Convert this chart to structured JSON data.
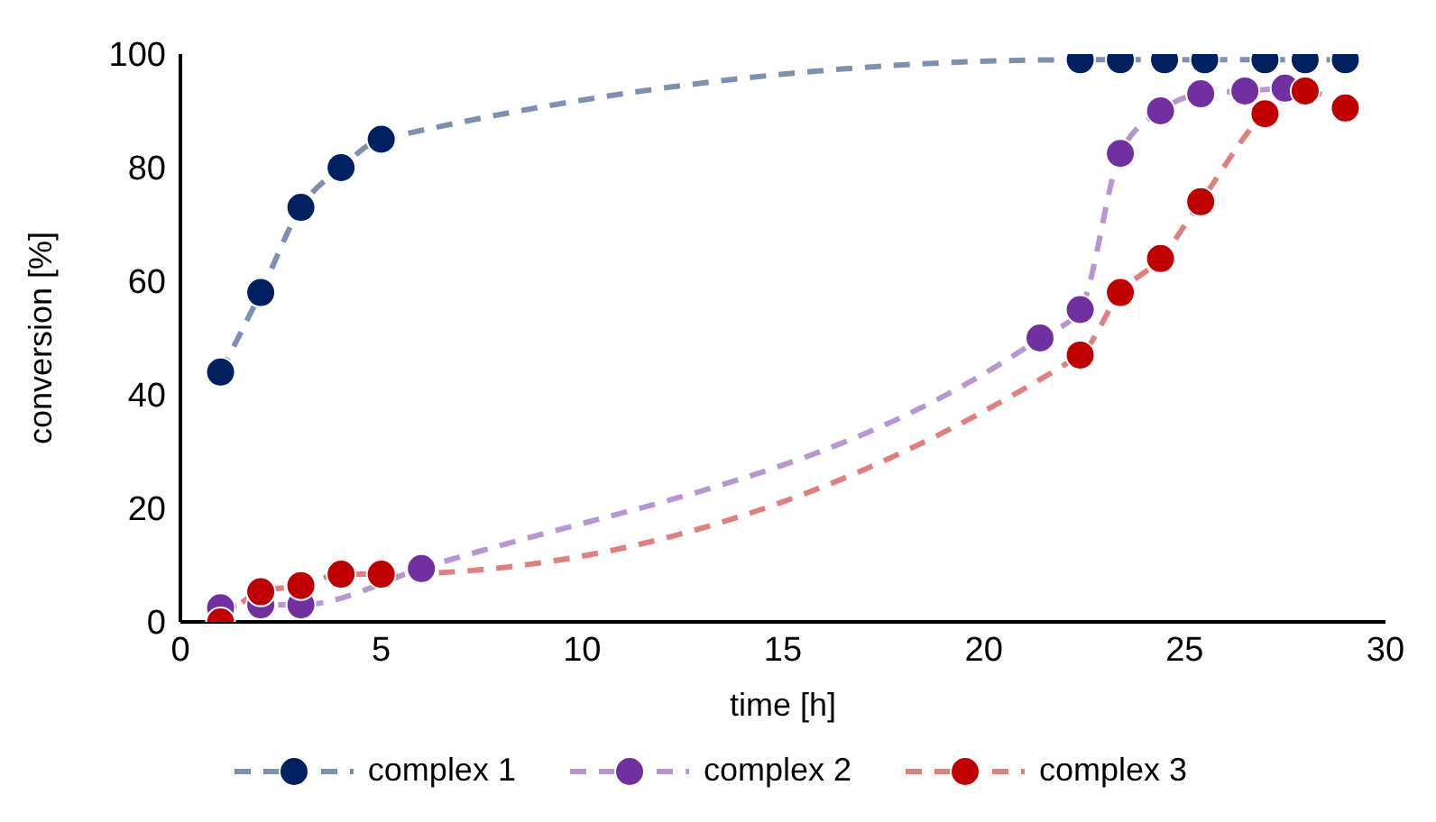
{
  "chart_data": {
    "type": "line",
    "xlabel": "time [h]",
    "ylabel": "conversion [%]",
    "xlim": [
      0,
      30
    ],
    "xticks": [
      0,
      5,
      10,
      15,
      20,
      25,
      30
    ],
    "ylim": [
      0,
      100
    ],
    "yticks": [
      0,
      20,
      40,
      60,
      80,
      100
    ],
    "grid": false,
    "legend": "bottom",
    "marker": "circle",
    "line_style": "dashed",
    "series": [
      {
        "name": "complex 1",
        "color": "#002060",
        "x": [
          1,
          2,
          3,
          4,
          5,
          22.4,
          23.4,
          24.5,
          25.5,
          27,
          28,
          29
        ],
        "values": [
          44,
          58,
          73,
          80,
          85,
          99,
          99,
          99,
          99,
          99,
          99,
          99
        ]
      },
      {
        "name": "complex 2",
        "color": "#7030a0",
        "x": [
          1,
          2,
          3,
          6,
          21.4,
          22.4,
          23.4,
          24.4,
          25.4,
          26.5,
          27.5
        ],
        "values": [
          2.5,
          3,
          3,
          9.4,
          50,
          55,
          82.5,
          90,
          93,
          93.5,
          94
        ]
      },
      {
        "name": "complex 3",
        "color": "#c00000",
        "x": [
          1,
          2,
          3,
          4,
          5,
          22.4,
          23.4,
          24.4,
          25.4,
          27,
          28,
          29
        ],
        "values": [
          0,
          5.3,
          6.4,
          8.4,
          8.4,
          47,
          58,
          64,
          74,
          89.5,
          93.5,
          90.5
        ]
      }
    ]
  }
}
